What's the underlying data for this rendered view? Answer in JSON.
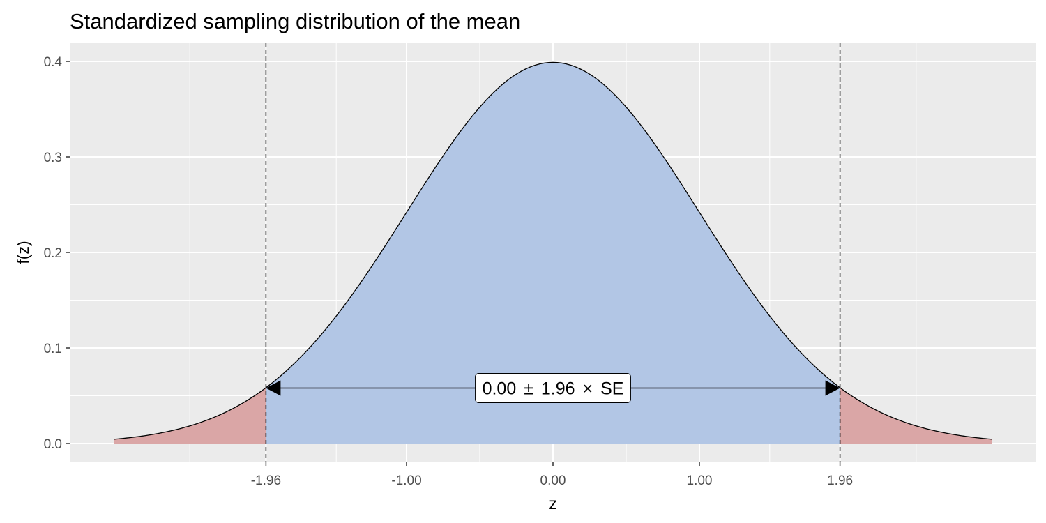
{
  "chart_data": {
    "type": "area",
    "title": "Standardized sampling distribution of the mean",
    "xlabel": "z",
    "ylabel": "f(z)",
    "xlim": [
      -3.0,
      3.0
    ],
    "ylim": [
      0,
      0.4
    ],
    "x_ticks": [
      -1.96,
      -1.0,
      0.0,
      1.0,
      1.96
    ],
    "x_tick_labels": [
      "-1.96",
      "-1.00",
      "0.00",
      "1.00",
      "1.96"
    ],
    "y_ticks": [
      0.0,
      0.1,
      0.2,
      0.3,
      0.4
    ],
    "y_tick_labels": [
      "0.0",
      "0.1",
      "0.2",
      "0.3",
      "0.4"
    ],
    "distribution": "standard normal density",
    "critical_values": [
      -1.96,
      1.96
    ],
    "density_at_critical": 0.058,
    "peak_density": 0.399,
    "regions": [
      {
        "name": "lower tail",
        "from": -3.0,
        "to": -1.96,
        "color": "#d9a3a3"
      },
      {
        "name": "central region",
        "from": -1.96,
        "to": 1.96,
        "color": "#b0c4e4"
      },
      {
        "name": "upper tail",
        "from": 1.96,
        "to": 3.0,
        "color": "#d9a3a3"
      }
    ],
    "annotation": {
      "parts": [
        "0.00",
        "±",
        "1.96",
        "×",
        "SE"
      ],
      "arrow_from": -1.96,
      "arrow_to": 1.96,
      "arrow_y": 0.058
    },
    "grid": true,
    "background": "#ebebeb",
    "line_color": "#000000"
  }
}
